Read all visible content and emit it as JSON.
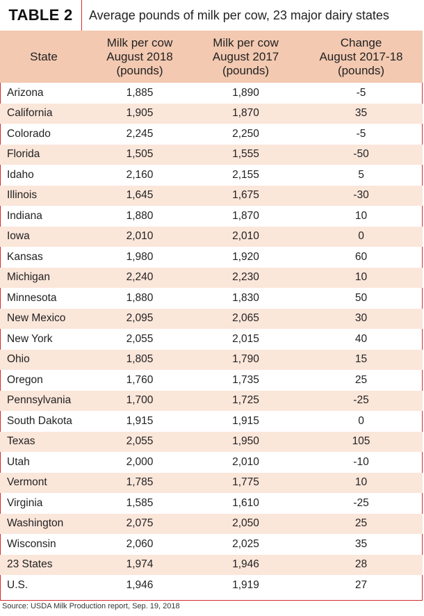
{
  "table_label": "TABLE 2",
  "title": "Average pounds of milk per cow, 23 major dairy states",
  "headers": {
    "state": "State",
    "col1": [
      "Milk per cow",
      "August 2018",
      "(pounds)"
    ],
    "col2": [
      "Milk per cow",
      "August 2017",
      "(pounds)"
    ],
    "col3": [
      "Change",
      "August 2017-18",
      "(pounds)"
    ]
  },
  "rows": [
    [
      "Arizona",
      "1,885",
      "1,890",
      "-5"
    ],
    [
      "California",
      "1,905",
      "1,870",
      "35"
    ],
    [
      "Colorado",
      "2,245",
      "2,250",
      "-5"
    ],
    [
      "Florida",
      "1,505",
      "1,555",
      "-50"
    ],
    [
      "Idaho",
      "2,160",
      "2,155",
      "5"
    ],
    [
      "Illinois",
      "1,645",
      "1,675",
      "-30"
    ],
    [
      "Indiana",
      "1,880",
      "1,870",
      "10"
    ],
    [
      "Iowa",
      "2,010",
      "2,010",
      "0"
    ],
    [
      "Kansas",
      "1,980",
      "1,920",
      "60"
    ],
    [
      "Michigan",
      "2,240",
      "2,230",
      "10"
    ],
    [
      "Minnesota",
      "1,880",
      "1,830",
      "50"
    ],
    [
      "New Mexico",
      "2,095",
      "2,065",
      "30"
    ],
    [
      "New York",
      "2,055",
      "2,015",
      "40"
    ],
    [
      "Ohio",
      "1,805",
      "1,790",
      "15"
    ],
    [
      "Oregon",
      "1,760",
      "1,735",
      "25"
    ],
    [
      "Pennsylvania",
      "1,700",
      "1,725",
      "-25"
    ],
    [
      "South Dakota",
      "1,915",
      "1,915",
      "0"
    ],
    [
      "Texas",
      "2,055",
      "1,950",
      "105"
    ],
    [
      "Utah",
      "2,000",
      "2,010",
      "-10"
    ],
    [
      "Vermont",
      "1,785",
      "1,775",
      "10"
    ],
    [
      "Virginia",
      "1,585",
      "1,610",
      "-25"
    ],
    [
      "Washington",
      "2,075",
      "2,050",
      "25"
    ],
    [
      "Wisconsin",
      "2,060",
      "2,025",
      "35"
    ],
    [
      "23 States",
      "1,974",
      "1,946",
      "28"
    ],
    [
      "U.S.",
      "1,946",
      "1,919",
      "27"
    ]
  ],
  "source": "Source: USDA Milk Production report, Sep. 19, 2018",
  "colors": {
    "border": "#d32a2a",
    "header_bg": "#f3c9b1",
    "alt_row_bg": "#fbe6da"
  }
}
